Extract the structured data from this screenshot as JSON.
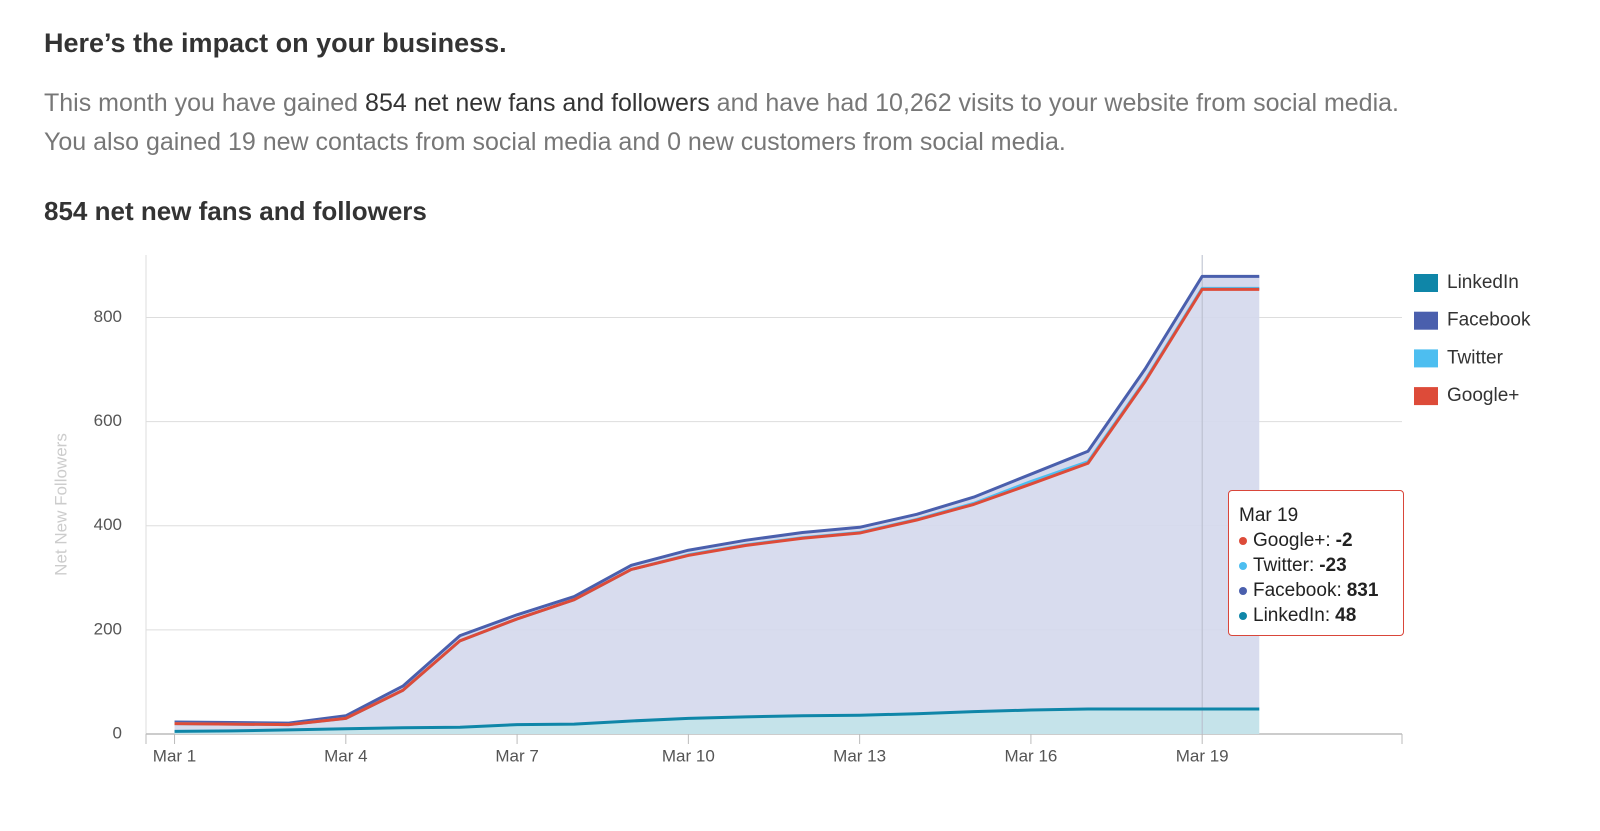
{
  "header": {
    "title": "Here’s the impact on your business.",
    "intro": [
      "This month you have gained ",
      "854 net new fans and followers",
      " and have had 10,262 visits to your website from social media. You also gained 19 new contacts from social media and 0 new customers from social media."
    ]
  },
  "chart_data": {
    "type": "stacked_area",
    "title": "854 net new fans and followers",
    "y_label": "Net New Followers",
    "x": [
      1,
      2,
      3,
      4,
      5,
      6,
      7,
      8,
      9,
      10,
      11,
      12,
      13,
      14,
      15,
      16,
      17,
      18,
      19,
      20
    ],
    "xlim": [
      0.5,
      22.5
    ],
    "xticks": [
      {
        "value": 1,
        "label": "Mar 1"
      },
      {
        "value": 4,
        "label": "Mar 4"
      },
      {
        "value": 7,
        "label": "Mar 7"
      },
      {
        "value": 10,
        "label": "Mar 10"
      },
      {
        "value": 13,
        "label": "Mar 13"
      },
      {
        "value": 16,
        "label": "Mar 16"
      },
      {
        "value": 19,
        "label": "Mar 19"
      }
    ],
    "ylim": [
      0,
      920
    ],
    "yticks": [
      0,
      200,
      400,
      600,
      800
    ],
    "grid": true,
    "legend": "top-right",
    "series": [
      {
        "name": "LinkedIn",
        "color": "#0f86a8",
        "values": [
          5,
          6,
          8,
          10,
          12,
          13,
          18,
          19,
          25,
          30,
          33,
          35,
          36,
          39,
          43,
          46,
          48,
          48,
          48,
          48
        ]
      },
      {
        "name": "Facebook",
        "color": "#4a5fad",
        "values": [
          18,
          16,
          13,
          25,
          80,
          176,
          211,
          245,
          299,
          323,
          339,
          352,
          361,
          383,
          412,
          453,
          495,
          653,
          831,
          831
        ]
      },
      {
        "name": "Twitter",
        "color": "#4dbef0",
        "values": [
          -3,
          -3,
          -3,
          -5,
          -8,
          -10,
          -8,
          -6,
          -8,
          -9,
          -9,
          -10,
          -10,
          -10,
          -12,
          -14,
          -20,
          -22,
          -23,
          -23
        ]
      },
      {
        "name": "Google+",
        "color": "#dd4b39",
        "values": [
          0,
          0,
          0,
          0,
          0,
          0,
          0,
          0,
          0,
          -1,
          -1,
          -1,
          -1,
          -1,
          -2,
          -5,
          -3,
          -2,
          -2,
          -2
        ]
      }
    ],
    "tooltip": {
      "x_index": 18,
      "tick_index": 6,
      "order": [
        3,
        2,
        1,
        0
      ]
    }
  }
}
